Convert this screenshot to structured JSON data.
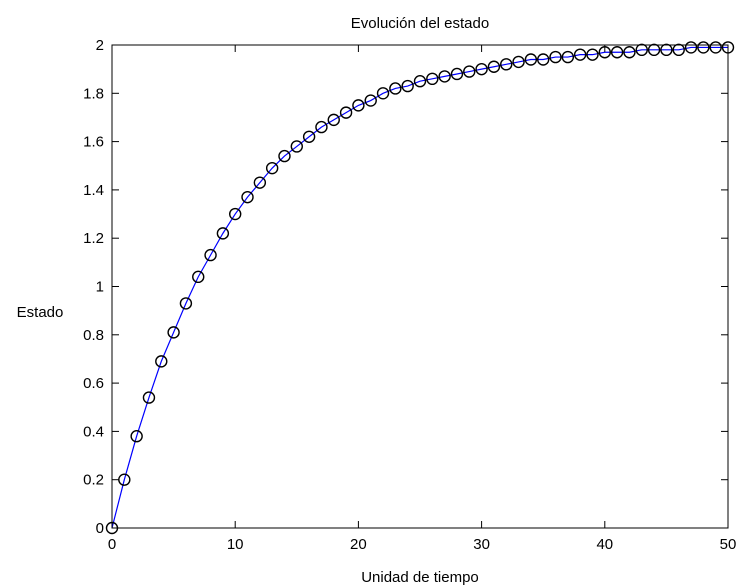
{
  "chart_data": {
    "type": "line",
    "title": "Evolución del estado",
    "xlabel": "Unidad de tiempo",
    "ylabel": "Estado",
    "xlim": [
      0,
      50
    ],
    "ylim": [
      0,
      2
    ],
    "xticks": [
      0,
      10,
      20,
      30,
      40,
      50
    ],
    "yticks": [
      0,
      0.2,
      0.4,
      0.6,
      0.8,
      1,
      1.2,
      1.4,
      1.6,
      1.8,
      2
    ],
    "grid": false,
    "legend": "none",
    "line_color": "#0000ff",
    "marker_color": "#000000",
    "series": [
      {
        "style": "line",
        "x": [
          0,
          1,
          2,
          3,
          4,
          5,
          6,
          7,
          8,
          9,
          10,
          11,
          12,
          13,
          14,
          15,
          16,
          17,
          18,
          19,
          20,
          21,
          22,
          23,
          24,
          25,
          26,
          27,
          28,
          29,
          30,
          31,
          32,
          33,
          34,
          35,
          36,
          37,
          38,
          39,
          40,
          41,
          42,
          43,
          44,
          45,
          46,
          47,
          48,
          49,
          50
        ],
        "y": [
          0,
          0.2,
          0.38,
          0.54,
          0.69,
          0.81,
          0.93,
          1.04,
          1.13,
          1.22,
          1.3,
          1.37,
          1.43,
          1.49,
          1.54,
          1.58,
          1.62,
          1.66,
          1.69,
          1.72,
          1.75,
          1.77,
          1.8,
          1.82,
          1.83,
          1.85,
          1.86,
          1.87,
          1.88,
          1.89,
          1.9,
          1.91,
          1.92,
          1.93,
          1.94,
          1.94,
          1.95,
          1.95,
          1.96,
          1.96,
          1.97,
          1.97,
          1.97,
          1.98,
          1.98,
          1.98,
          1.98,
          1.99,
          1.99,
          1.99,
          1.99
        ]
      },
      {
        "style": "markers",
        "marker": "circle",
        "x": [
          0,
          1,
          2,
          3,
          4,
          5,
          6,
          7,
          8,
          9,
          10,
          11,
          12,
          13,
          14,
          15,
          16,
          17,
          18,
          19,
          20,
          21,
          22,
          23,
          24,
          25,
          26,
          27,
          28,
          29,
          30,
          31,
          32,
          33,
          34,
          35,
          36,
          37,
          38,
          39,
          40,
          41,
          42,
          43,
          44,
          45,
          46,
          47,
          48,
          49,
          50
        ],
        "y": [
          0,
          0.2,
          0.38,
          0.54,
          0.69,
          0.81,
          0.93,
          1.04,
          1.13,
          1.22,
          1.3,
          1.37,
          1.43,
          1.49,
          1.54,
          1.58,
          1.62,
          1.66,
          1.69,
          1.72,
          1.75,
          1.77,
          1.8,
          1.82,
          1.83,
          1.85,
          1.86,
          1.87,
          1.88,
          1.89,
          1.9,
          1.91,
          1.92,
          1.93,
          1.94,
          1.94,
          1.95,
          1.95,
          1.96,
          1.96,
          1.97,
          1.97,
          1.97,
          1.98,
          1.98,
          1.98,
          1.98,
          1.99,
          1.99,
          1.99,
          1.99
        ]
      }
    ]
  }
}
